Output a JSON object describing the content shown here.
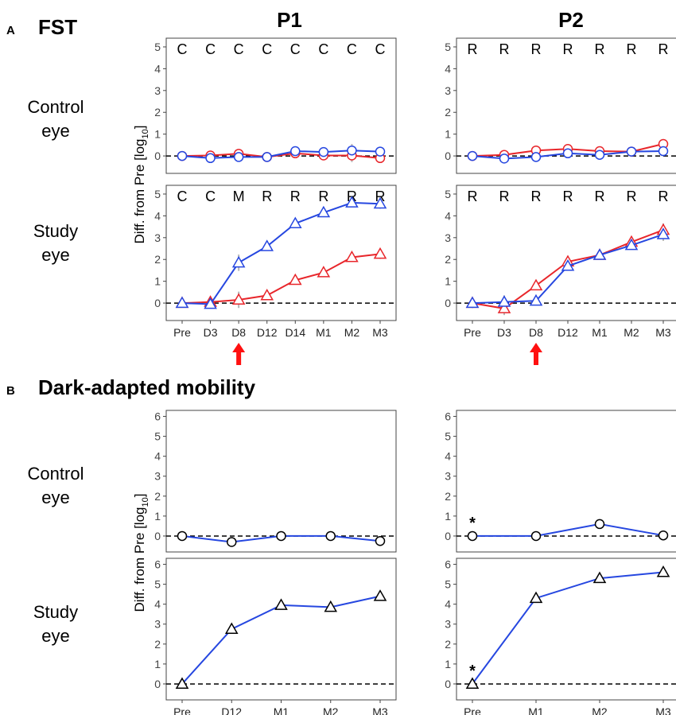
{
  "section_a": {
    "letter": "A",
    "title": "FST"
  },
  "section_b": {
    "letter": "B",
    "title": "Dark-adapted mobility"
  },
  "columns": [
    "P1",
    "P2"
  ],
  "rows": {
    "control": [
      "Control",
      "eye"
    ],
    "study": [
      "Study",
      "eye"
    ]
  },
  "ylabel_main": "Diff. from Pre [log",
  "ylabel_sub": "10",
  "ylabel_end": "]",
  "colors": {
    "red": "#e8262b",
    "blue": "#2647e0",
    "error": "#b5b5b5",
    "arrow": "#ff1010"
  },
  "arrow_category": "D8",
  "star_symbol": "*",
  "chart_data": [
    {
      "id": "A-P1-control",
      "type": "line",
      "section": "A",
      "column": "P1",
      "row": "Control eye",
      "marker": "circle",
      "ylim": [
        -0.8,
        5.4
      ],
      "yticks": [
        0,
        1,
        2,
        3,
        4,
        5
      ],
      "categories": [
        "Pre",
        "D3",
        "D8",
        "D12",
        "D14",
        "M1",
        "M2",
        "M3"
      ],
      "show_xticks": false,
      "codes": [
        "C",
        "C",
        "C",
        "C",
        "C",
        "C",
        "C",
        "C"
      ],
      "series": [
        {
          "color": "red",
          "values": [
            0,
            0.02,
            0.1,
            -0.05,
            0.12,
            0.02,
            0.02,
            -0.1
          ]
        },
        {
          "color": "blue",
          "values": [
            0,
            -0.1,
            -0.05,
            -0.05,
            0.22,
            0.18,
            0.25,
            0.2
          ]
        }
      ],
      "errors": [
        0.1,
        0.3,
        0.15,
        0.3,
        0.3,
        0.3,
        0.6,
        0.35
      ]
    },
    {
      "id": "A-P2-control",
      "type": "line",
      "section": "A",
      "column": "P2",
      "row": "Control eye",
      "marker": "circle",
      "ylim": [
        -0.8,
        5.4
      ],
      "yticks": [
        0,
        1,
        2,
        3,
        4,
        5
      ],
      "categories": [
        "Pre",
        "D3",
        "D8",
        "D12",
        "M1",
        "M2",
        "M3"
      ],
      "show_xticks": false,
      "codes": [
        "R",
        "R",
        "R",
        "R",
        "R",
        "R",
        "R"
      ],
      "series": [
        {
          "color": "red",
          "values": [
            0,
            0.05,
            0.25,
            0.32,
            0.22,
            0.2,
            0.55
          ]
        },
        {
          "color": "blue",
          "values": [
            0,
            -0.12,
            -0.05,
            0.12,
            0.05,
            0.2,
            0.22
          ]
        }
      ],
      "errors": [
        0.3,
        0.4,
        0.45,
        0.3,
        0.35,
        0.25,
        0.15
      ]
    },
    {
      "id": "A-P1-study",
      "type": "line",
      "section": "A",
      "column": "P1",
      "row": "Study eye",
      "marker": "triangle",
      "ylim": [
        -0.8,
        5.4
      ],
      "yticks": [
        0,
        1,
        2,
        3,
        4,
        5
      ],
      "categories": [
        "Pre",
        "D3",
        "D8",
        "D12",
        "D14",
        "M1",
        "M2",
        "M3"
      ],
      "show_xticks": true,
      "codes": [
        "C",
        "C",
        "M",
        "R",
        "R",
        "R",
        "R",
        "R"
      ],
      "series": [
        {
          "color": "red",
          "values": [
            0,
            0.05,
            0.15,
            0.35,
            1.05,
            1.4,
            2.1,
            2.25
          ]
        },
        {
          "color": "blue",
          "values": [
            0,
            -0.05,
            1.85,
            2.6,
            3.65,
            4.15,
            4.6,
            4.55
          ]
        }
      ],
      "errors": [
        0.15,
        0.2,
        0.75,
        0.25,
        0.4,
        0.35,
        0.35,
        0.45
      ]
    },
    {
      "id": "A-P2-study",
      "type": "line",
      "section": "A",
      "column": "P2",
      "row": "Study eye",
      "marker": "triangle",
      "ylim": [
        -0.8,
        5.4
      ],
      "yticks": [
        0,
        1,
        2,
        3,
        4,
        5
      ],
      "categories": [
        "Pre",
        "D3",
        "D8",
        "D12",
        "M1",
        "M2",
        "M3"
      ],
      "show_xticks": true,
      "codes": [
        "R",
        "R",
        "R",
        "R",
        "R",
        "R",
        "R"
      ],
      "series": [
        {
          "color": "red",
          "values": [
            0,
            -0.25,
            0.8,
            1.9,
            2.2,
            2.8,
            3.35
          ]
        },
        {
          "color": "blue",
          "values": [
            0,
            0.05,
            0.1,
            1.7,
            2.2,
            2.65,
            3.15
          ]
        }
      ],
      "errors": [
        0.45,
        0.6,
        0.3,
        0.4,
        0.3,
        0.3,
        0.6
      ]
    },
    {
      "id": "B-P1-control",
      "type": "line",
      "section": "B",
      "column": "P1",
      "row": "Control eye",
      "marker": "circle",
      "ylim": [
        -0.8,
        6.3
      ],
      "yticks": [
        0,
        1,
        2,
        3,
        4,
        5,
        6
      ],
      "categories": [
        "Pre",
        "D12",
        "M1",
        "M2",
        "M3"
      ],
      "show_xticks": false,
      "series": [
        {
          "color": "blue",
          "values": [
            0,
            -0.3,
            0,
            0,
            -0.25
          ]
        }
      ]
    },
    {
      "id": "B-P2-control",
      "type": "line",
      "section": "B",
      "column": "P2",
      "row": "Control eye",
      "marker": "circle",
      "ylim": [
        -0.8,
        6.3
      ],
      "yticks": [
        0,
        1,
        2,
        3,
        4,
        5,
        6
      ],
      "categories": [
        "Pre",
        "M1",
        "M2",
        "M3"
      ],
      "show_xticks": false,
      "star_index": 0,
      "series": [
        {
          "color": "blue",
          "values": [
            0,
            0,
            0.6,
            0.03
          ]
        }
      ]
    },
    {
      "id": "B-P1-study",
      "type": "line",
      "section": "B",
      "column": "P1",
      "row": "Study eye",
      "marker": "triangle",
      "ylim": [
        -0.8,
        6.3
      ],
      "yticks": [
        0,
        1,
        2,
        3,
        4,
        5,
        6
      ],
      "categories": [
        "Pre",
        "D12",
        "M1",
        "M2",
        "M3"
      ],
      "show_xticks": true,
      "series": [
        {
          "color": "blue",
          "values": [
            0,
            2.75,
            3.95,
            3.85,
            4.4
          ]
        }
      ]
    },
    {
      "id": "B-P2-study",
      "type": "line",
      "section": "B",
      "column": "P2",
      "row": "Study eye",
      "marker": "triangle",
      "ylim": [
        -0.8,
        6.3
      ],
      "yticks": [
        0,
        1,
        2,
        3,
        4,
        5,
        6
      ],
      "categories": [
        "Pre",
        "M1",
        "M2",
        "M3"
      ],
      "show_xticks": true,
      "star_index": 0,
      "series": [
        {
          "color": "blue",
          "values": [
            0,
            4.3,
            5.3,
            5.6
          ]
        }
      ]
    }
  ]
}
